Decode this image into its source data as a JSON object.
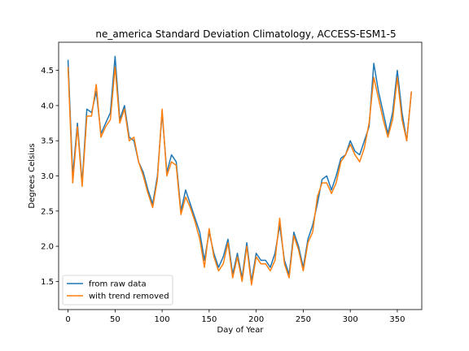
{
  "chart_data": {
    "type": "line",
    "title": "ne_america Standard Deviation Climatology, ACCESS-ESM1-5",
    "xlabel": "Day of Year",
    "ylabel": "Degrees Celsius",
    "xlim": [
      -10,
      376
    ],
    "ylim": [
      1.1,
      4.9
    ],
    "xticks": [
      0,
      50,
      100,
      150,
      200,
      250,
      300,
      350
    ],
    "yticks": [
      1.5,
      2.0,
      2.5,
      3.0,
      3.5,
      4.0,
      4.5
    ],
    "ytick_labels": [
      "1.5",
      "2.0",
      "2.5",
      "3.0",
      "3.5",
      "4.0",
      "4.5"
    ],
    "grid": false,
    "legend_position": "lower-left",
    "series": [
      {
        "name": "from raw data",
        "color": "#1f77b4",
        "x": [
          0,
          5,
          10,
          15,
          20,
          25,
          30,
          35,
          40,
          45,
          50,
          55,
          60,
          65,
          70,
          75,
          80,
          85,
          90,
          95,
          100,
          105,
          110,
          115,
          120,
          125,
          130,
          135,
          140,
          145,
          150,
          155,
          160,
          165,
          170,
          175,
          180,
          185,
          190,
          195,
          200,
          205,
          210,
          215,
          220,
          225,
          230,
          235,
          240,
          245,
          250,
          255,
          260,
          265,
          270,
          275,
          280,
          285,
          290,
          295,
          300,
          305,
          310,
          315,
          320,
          325,
          330,
          335,
          340,
          345,
          350,
          355,
          360,
          365
        ],
        "values": [
          4.65,
          3.0,
          3.75,
          2.9,
          3.95,
          3.9,
          4.2,
          3.6,
          3.75,
          3.9,
          4.7,
          3.8,
          4.0,
          3.55,
          3.5,
          3.2,
          3.05,
          2.8,
          2.6,
          3.0,
          3.9,
          3.05,
          3.3,
          3.2,
          2.5,
          2.8,
          2.6,
          2.4,
          2.2,
          1.8,
          2.2,
          1.9,
          1.7,
          1.85,
          2.1,
          1.6,
          1.9,
          1.55,
          2.05,
          1.5,
          1.9,
          1.8,
          1.8,
          1.7,
          1.9,
          2.3,
          1.8,
          1.6,
          2.2,
          2.0,
          1.7,
          2.1,
          2.3,
          2.6,
          2.95,
          3.0,
          2.8,
          3.0,
          3.25,
          3.3,
          3.5,
          3.35,
          3.3,
          3.5,
          3.7,
          4.6,
          4.2,
          3.9,
          3.6,
          3.9,
          4.5,
          3.9,
          3.5,
          4.2
        ]
      },
      {
        "name": "with trend removed",
        "color": "#ff7f0e",
        "x": [
          0,
          5,
          10,
          15,
          20,
          25,
          30,
          35,
          40,
          45,
          50,
          55,
          60,
          65,
          70,
          75,
          80,
          85,
          90,
          95,
          100,
          105,
          110,
          115,
          120,
          125,
          130,
          135,
          140,
          145,
          150,
          155,
          160,
          165,
          170,
          175,
          180,
          185,
          190,
          195,
          200,
          205,
          210,
          215,
          220,
          225,
          230,
          235,
          240,
          245,
          250,
          255,
          260,
          265,
          270,
          275,
          280,
          285,
          290,
          295,
          300,
          305,
          310,
          315,
          320,
          325,
          330,
          335,
          340,
          345,
          350,
          355,
          360,
          365
        ],
        "values": [
          4.55,
          2.9,
          3.7,
          2.85,
          3.85,
          3.85,
          4.3,
          3.55,
          3.7,
          3.8,
          4.55,
          3.75,
          3.95,
          3.5,
          3.55,
          3.2,
          3.0,
          2.75,
          2.55,
          2.95,
          3.95,
          3.0,
          3.2,
          3.15,
          2.45,
          2.7,
          2.55,
          2.35,
          2.1,
          1.7,
          2.25,
          1.85,
          1.65,
          1.75,
          2.05,
          1.55,
          1.85,
          1.5,
          2.0,
          1.45,
          1.85,
          1.75,
          1.75,
          1.65,
          1.8,
          2.4,
          1.75,
          1.55,
          2.15,
          1.95,
          1.65,
          2.05,
          2.2,
          2.7,
          2.9,
          2.9,
          2.75,
          2.9,
          3.2,
          3.3,
          3.45,
          3.3,
          3.2,
          3.4,
          3.75,
          4.4,
          4.1,
          3.8,
          3.55,
          3.8,
          4.4,
          3.8,
          3.5,
          4.2
        ]
      }
    ]
  }
}
